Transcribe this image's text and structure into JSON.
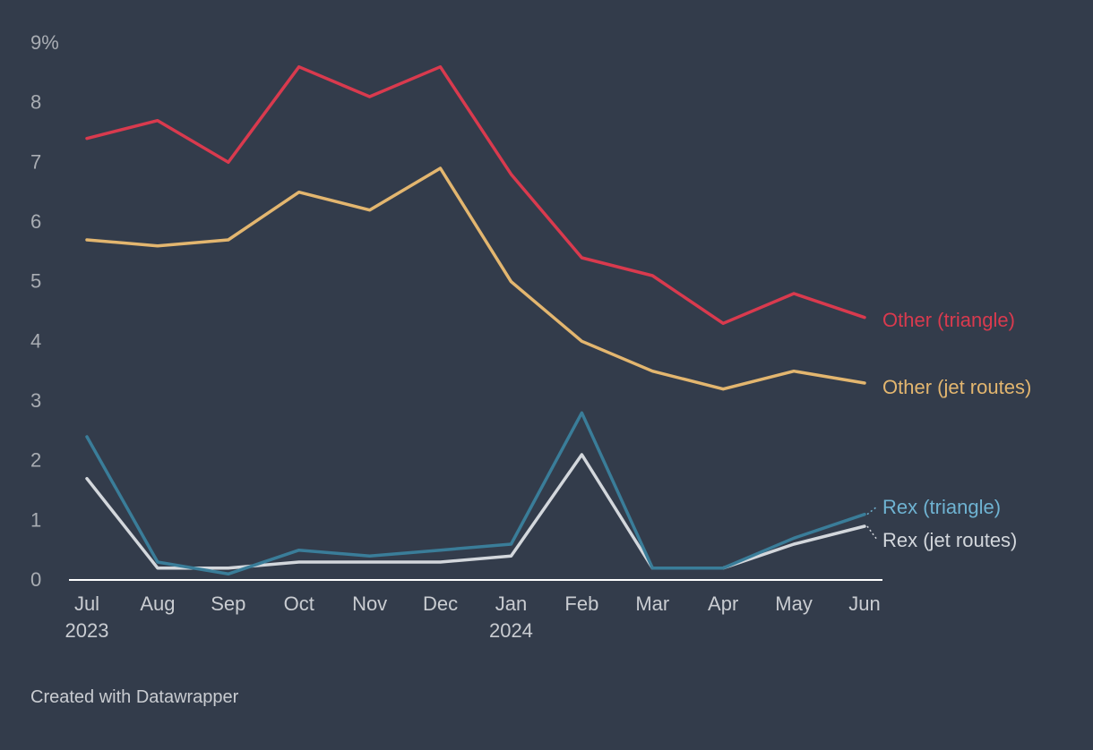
{
  "chart_data": {
    "type": "line",
    "title": "",
    "xlabel": "",
    "ylabel": "",
    "ylim": [
      0,
      9
    ],
    "y_ticks": [
      {
        "value": 0,
        "label": "0"
      },
      {
        "value": 1,
        "label": "1"
      },
      {
        "value": 2,
        "label": "2"
      },
      {
        "value": 3,
        "label": "3"
      },
      {
        "value": 4,
        "label": "4"
      },
      {
        "value": 5,
        "label": "5"
      },
      {
        "value": 6,
        "label": "6"
      },
      {
        "value": 7,
        "label": "7"
      },
      {
        "value": 8,
        "label": "8"
      },
      {
        "value": 9,
        "label": "9%"
      }
    ],
    "categories": [
      "Jul",
      "Aug",
      "Sep",
      "Oct",
      "Nov",
      "Dec",
      "Jan",
      "Feb",
      "Mar",
      "Apr",
      "May",
      "Jun"
    ],
    "category_years": [
      "2023",
      "",
      "",
      "",
      "",
      "",
      "2024",
      "",
      "",
      "",
      "",
      ""
    ],
    "series": [
      {
        "name": "Other (triangle)",
        "color": "#d93a4e",
        "values": [
          7.4,
          7.7,
          7.0,
          8.6,
          8.1,
          8.6,
          6.8,
          5.4,
          5.1,
          4.3,
          4.8,
          4.4
        ]
      },
      {
        "name": "Other (jet routes)",
        "color": "#e3b66f",
        "values": [
          5.7,
          5.6,
          5.7,
          6.5,
          6.2,
          6.9,
          5.0,
          4.0,
          3.5,
          3.2,
          3.5,
          3.3
        ]
      },
      {
        "name": "Rex (triangle)",
        "color": "#3a7d99",
        "label_color": "#6fb3d2",
        "values": [
          2.4,
          0.3,
          0.1,
          0.5,
          0.4,
          0.5,
          0.6,
          2.8,
          0.2,
          0.2,
          0.7,
          1.1
        ]
      },
      {
        "name": "Rex (jet routes)",
        "color": "#d3d7dc",
        "values": [
          1.7,
          0.2,
          0.2,
          0.3,
          0.3,
          0.3,
          0.4,
          2.1,
          0.2,
          0.2,
          0.6,
          0.9
        ]
      }
    ]
  },
  "footer": {
    "credit": "Created with Datawrapper"
  }
}
